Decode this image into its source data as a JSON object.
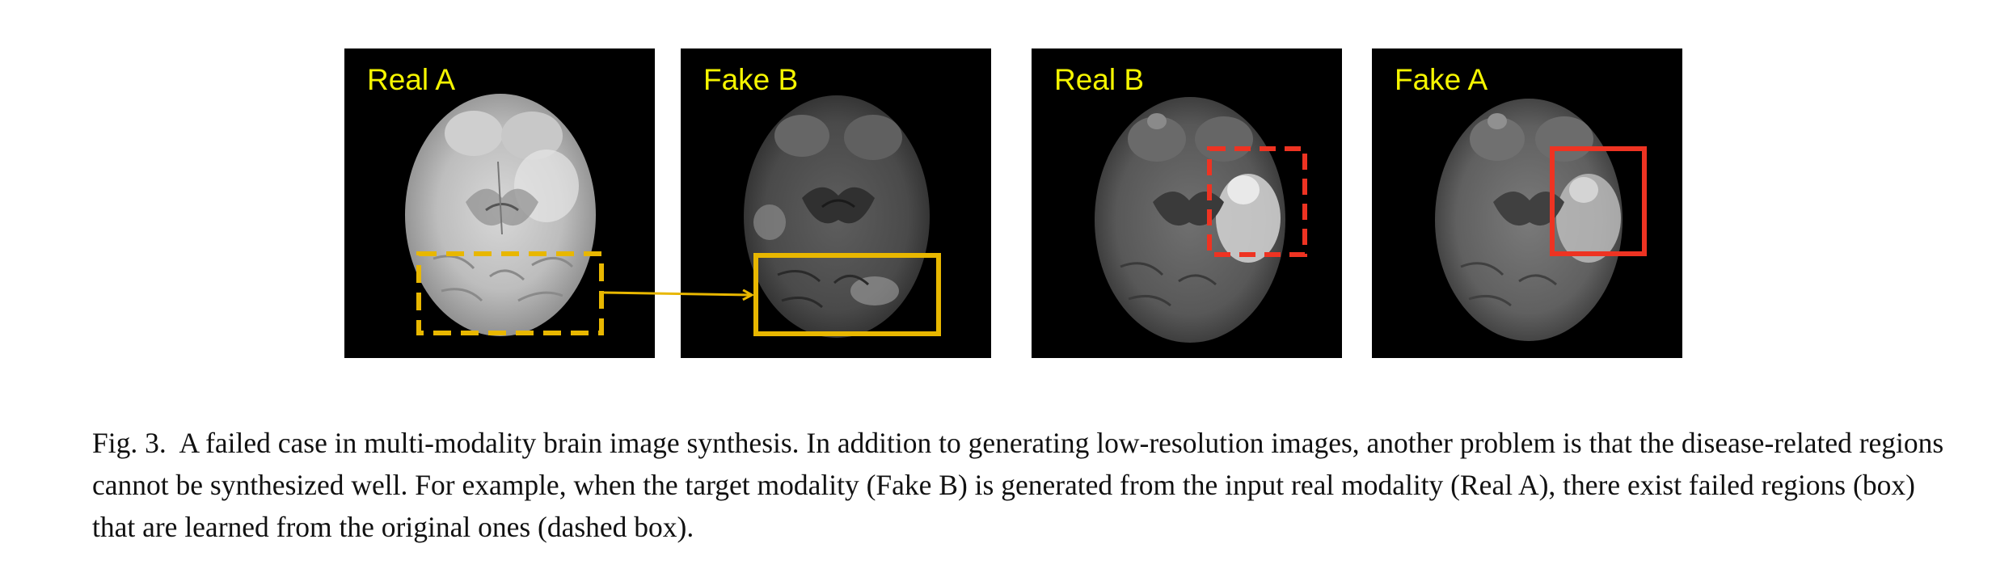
{
  "figure": {
    "panels": [
      {
        "id": "real-a",
        "label": "Real A",
        "tone": "bright",
        "box": {
          "style": "dashed",
          "color": "#e8b700"
        }
      },
      {
        "id": "fake-b",
        "label": "Fake B",
        "tone": "dim-noisy",
        "box": {
          "style": "solid",
          "color": "#e8b700"
        }
      },
      {
        "id": "real-b",
        "label": "Real B",
        "tone": "dim-lesion",
        "box": {
          "style": "dashed",
          "color": "#ee3322"
        }
      },
      {
        "id": "fake-a",
        "label": "Fake A",
        "tone": "dim-lesion",
        "box": {
          "style": "solid",
          "color": "#ee3322"
        }
      }
    ],
    "arrow": {
      "from": "real-a",
      "to": "fake-b",
      "color": "#e8b700"
    }
  },
  "caption": {
    "prefix": "Fig. 3.",
    "text": "A failed case in multi-modality brain image synthesis. In addition to generating low-resolution images, another problem is that the disease-related regions cannot be synthesized well. For example, when the target modality (Fake B) is generated from the input real modality (Real A), there exist failed regions (box) that are learned from the original ones (dashed box)."
  }
}
